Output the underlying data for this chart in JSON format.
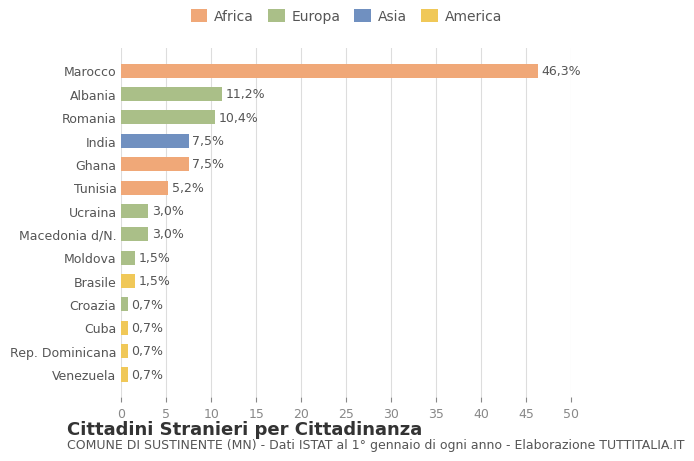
{
  "countries": [
    "Marocco",
    "Albania",
    "Romania",
    "India",
    "Ghana",
    "Tunisia",
    "Ucraina",
    "Macedonia d/N.",
    "Moldova",
    "Brasile",
    "Croazia",
    "Cuba",
    "Rep. Dominicana",
    "Venezuela"
  ],
  "values": [
    46.3,
    11.2,
    10.4,
    7.5,
    7.5,
    5.2,
    3.0,
    3.0,
    1.5,
    1.5,
    0.7,
    0.7,
    0.7,
    0.7
  ],
  "labels": [
    "46,3%",
    "11,2%",
    "10,4%",
    "7,5%",
    "7,5%",
    "5,2%",
    "3,0%",
    "3,0%",
    "1,5%",
    "1,5%",
    "0,7%",
    "0,7%",
    "0,7%",
    "0,7%"
  ],
  "continents": [
    "Africa",
    "Europa",
    "Europa",
    "Asia",
    "Africa",
    "Africa",
    "Europa",
    "Europa",
    "Europa",
    "America",
    "Europa",
    "America",
    "America",
    "America"
  ],
  "colors": {
    "Africa": "#F0A878",
    "Europa": "#AABF88",
    "Asia": "#7090C0",
    "America": "#F0C858"
  },
  "legend_order": [
    "Africa",
    "Europa",
    "Asia",
    "America"
  ],
  "xlim": [
    0,
    50
  ],
  "xticks": [
    0,
    5,
    10,
    15,
    20,
    25,
    30,
    35,
    40,
    45,
    50
  ],
  "title": "Cittadini Stranieri per Cittadinanza",
  "subtitle": "COMUNE DI SUSTINENTE (MN) - Dati ISTAT al 1° gennaio di ogni anno - Elaborazione TUTTITALIA.IT",
  "bg_color": "#FFFFFF",
  "grid_color": "#DDDDDD",
  "bar_height": 0.6,
  "title_fontsize": 13,
  "subtitle_fontsize": 9,
  "label_fontsize": 9,
  "tick_fontsize": 9,
  "legend_fontsize": 10
}
